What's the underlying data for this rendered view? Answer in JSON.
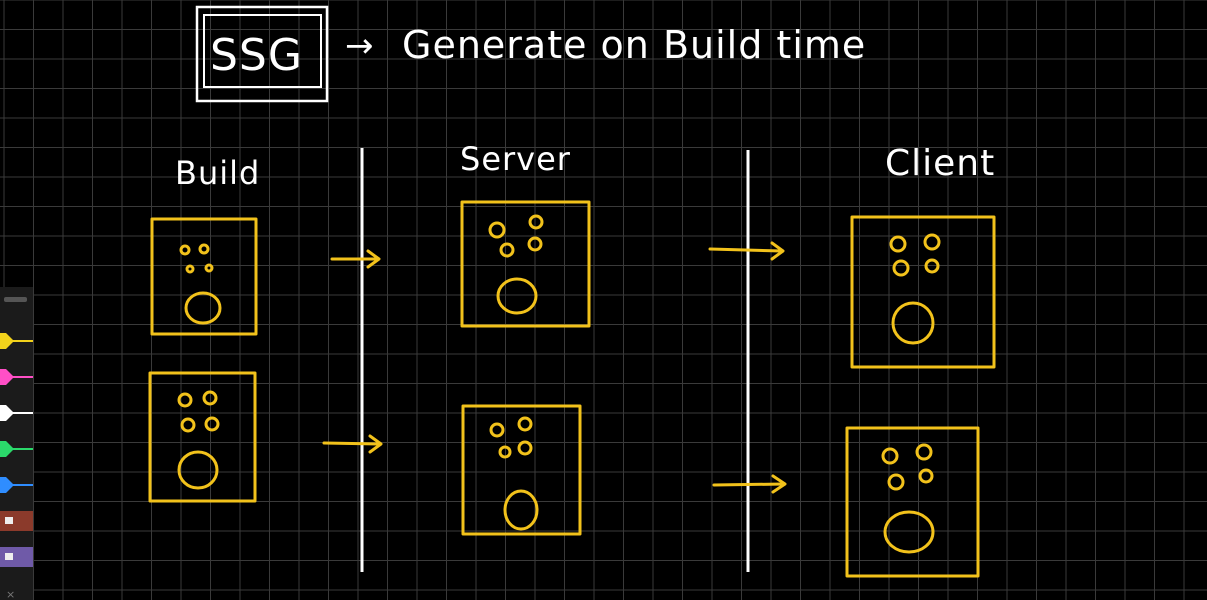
{
  "title": {
    "boxed": "SSG",
    "arrow": "→",
    "text": "Generate on Build time"
  },
  "columns": [
    {
      "label": "Build"
    },
    {
      "label": "Server"
    },
    {
      "label": "Client"
    }
  ],
  "colors": {
    "background": "#000000",
    "grid": "#3a3a3a",
    "ink": "#ffffff",
    "highlight": "#f2c21b"
  },
  "toolbar": {
    "pens": [
      {
        "name": "yellow-pen",
        "color": "#f2d21b"
      },
      {
        "name": "pink-pen",
        "color": "#ff4fc6"
      },
      {
        "name": "white-pen",
        "color": "#ffffff"
      },
      {
        "name": "green-pen",
        "color": "#2bd96b"
      },
      {
        "name": "blue-pen",
        "color": "#2f8dff"
      },
      {
        "name": "brown-pen",
        "color": "#8b3a2b"
      },
      {
        "name": "purple-pen",
        "color": "#6f5aa8"
      }
    ]
  }
}
